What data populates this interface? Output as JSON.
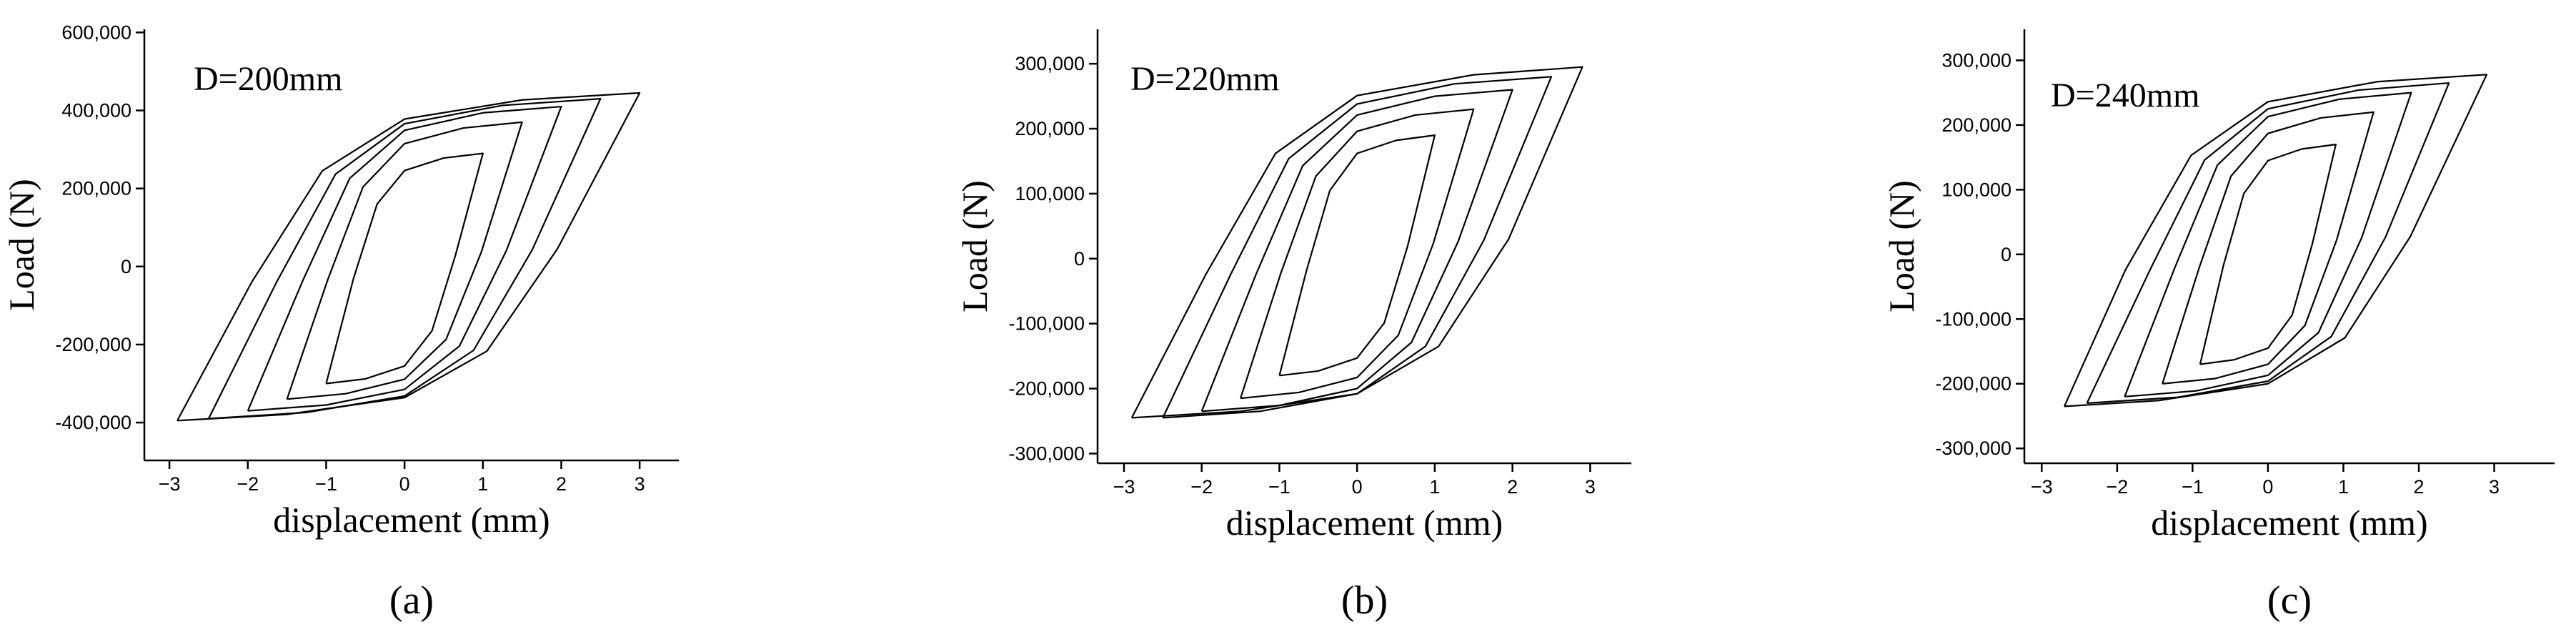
{
  "chart_data": [
    {
      "type": "line",
      "annotation": "D=200mm",
      "xlabel": "displacement (mm)",
      "ylabel": "Load (N)",
      "caption": "(a)",
      "xlim": [
        -3.32,
        3.5
      ],
      "ylim": [
        -497000,
        608000
      ],
      "xticks": [
        {
          "value": -3,
          "label": "−3"
        },
        {
          "value": -2,
          "label": "−2"
        },
        {
          "value": -1,
          "label": "−1"
        },
        0,
        1,
        2,
        3
      ],
      "yticks": [
        {
          "value": -400000,
          "label": "-400,000"
        },
        {
          "value": -200000,
          "label": "-200,000"
        },
        0,
        {
          "value": 200000,
          "label": "200,000"
        },
        {
          "value": 400000,
          "label": "400,000"
        },
        {
          "value": 600000,
          "label": "600,000"
        }
      ],
      "series": [
        {
          "color": "#000000",
          "x": [
            -1,
            -0.65,
            -0.35,
            0,
            0.5,
            1,
            0.65,
            0.35,
            0,
            -0.5,
            -1
          ],
          "values": [
            -300000,
            -30000,
            160000,
            246000,
            278000,
            290000,
            29000,
            -165000,
            -255000,
            -288000,
            -300000
          ]
        },
        {
          "color": "#000000",
          "x": [
            -1.5,
            -0.98,
            -0.53,
            0,
            0.75,
            1.5,
            0.98,
            0.53,
            0,
            -0.75,
            -1.5
          ],
          "values": [
            -340000,
            -34000,
            204000,
            315000,
            355000,
            370000,
            37000,
            -187000,
            -289000,
            -326000,
            -340000
          ]
        },
        {
          "color": "#000000",
          "x": [
            -2,
            -1.3,
            -0.7,
            0,
            1,
            2,
            1.3,
            0.7,
            0,
            -1,
            -2
          ],
          "values": [
            -370000,
            -37000,
            226000,
            349000,
            394000,
            410000,
            41000,
            -204000,
            -315000,
            -355000,
            -370000
          ]
        },
        {
          "color": "#000000",
          "x": [
            -2.5,
            -1.63,
            -0.88,
            0,
            1.25,
            2.5,
            1.63,
            0.88,
            0,
            -1.25,
            -2.5
          ],
          "values": [
            -390000,
            -39000,
            237000,
            366000,
            413000,
            430000,
            43000,
            -215000,
            -332000,
            -374000,
            -390000
          ]
        },
        {
          "color": "#000000",
          "x": [
            -2.9,
            -1.95,
            -1.05,
            0,
            1.5,
            3,
            1.95,
            1.05,
            0,
            -1.5,
            -2.9
          ],
          "values": [
            -395000,
            -40000,
            245000,
            378000,
            427000,
            445000,
            45000,
            -217000,
            -336000,
            -379000,
            -395000
          ]
        }
      ]
    },
    {
      "type": "line",
      "annotation": "D=220mm",
      "xlabel": "displacement (mm)",
      "ylabel": "Load (N)",
      "caption": "(b)",
      "xlim": [
        -3.34,
        3.53
      ],
      "ylim": [
        -315000,
        353000
      ],
      "xticks": [
        {
          "value": -3,
          "label": "−3"
        },
        {
          "value": -2,
          "label": "−2"
        },
        {
          "value": -1,
          "label": "−1"
        },
        0,
        1,
        2,
        3
      ],
      "yticks": [
        {
          "value": -300000,
          "label": "-300,000"
        },
        {
          "value": -200000,
          "label": "-200,000"
        },
        {
          "value": -100000,
          "label": "-100,000"
        },
        0,
        {
          "value": 100000,
          "label": "100,000"
        },
        {
          "value": 200000,
          "label": "200,000"
        },
        {
          "value": 300000,
          "label": "300,000"
        }
      ],
      "series": [
        {
          "color": "#000000",
          "x": [
            -1,
            -0.65,
            -0.35,
            0,
            0.5,
            1,
            0.65,
            0.35,
            0,
            -0.5,
            -1
          ],
          "values": [
            -180000,
            -18000,
            105000,
            162000,
            182000,
            190000,
            19000,
            -99000,
            -153000,
            -173000,
            -180000
          ]
        },
        {
          "color": "#000000",
          "x": [
            -1.5,
            -0.98,
            -0.53,
            0,
            0.75,
            1.5,
            0.98,
            0.53,
            0,
            -0.75,
            -1.5
          ],
          "values": [
            -215000,
            -22000,
            127000,
            196000,
            221000,
            230000,
            23000,
            -118000,
            -183000,
            -206000,
            -215000
          ]
        },
        {
          "color": "#000000",
          "x": [
            -2,
            -1.3,
            -0.7,
            0,
            1,
            2,
            1.3,
            0.7,
            0,
            -1,
            -2
          ],
          "values": [
            -235000,
            -24000,
            143000,
            221000,
            250000,
            260000,
            26000,
            -129000,
            -200000,
            -226000,
            -235000
          ]
        },
        {
          "color": "#000000",
          "x": [
            -2.5,
            -1.63,
            -0.88,
            0,
            1.25,
            2.5,
            1.63,
            0.88,
            0,
            -1.25,
            -2.5
          ],
          "values": [
            -245000,
            -25000,
            154000,
            238000,
            269000,
            280000,
            28000,
            -135000,
            -208000,
            -235000,
            -245000
          ]
        },
        {
          "color": "#000000",
          "x": [
            -2.9,
            -1.95,
            -1.05,
            0,
            1.5,
            2.9,
            1.95,
            1.05,
            0,
            -1.5,
            -2.9
          ],
          "values": [
            -245000,
            -25000,
            162000,
            251000,
            283000,
            295000,
            30000,
            -135000,
            -208000,
            -235000,
            -245000
          ]
        }
      ]
    },
    {
      "type": "line",
      "annotation": "D=240mm",
      "xlabel": "displacement (mm)",
      "ylabel": "Load (N)",
      "caption": "(c)",
      "xlim": [
        -3.23,
        3.8
      ],
      "ylim": [
        -323000,
        348000
      ],
      "xticks": [
        {
          "value": -3,
          "label": "−3"
        },
        {
          "value": -2,
          "label": "−2"
        },
        {
          "value": -1,
          "label": "−1"
        },
        0,
        1,
        2,
        3
      ],
      "yticks": [
        {
          "value": -300000,
          "label": "-300,000"
        },
        {
          "value": -200000,
          "label": "-200,000"
        },
        {
          "value": -100000,
          "label": "-100,000"
        },
        0,
        {
          "value": 100000,
          "label": "100,000"
        },
        {
          "value": 200000,
          "label": "200,000"
        },
        {
          "value": 300000,
          "label": "300,000"
        }
      ],
      "series": [
        {
          "color": "#000000",
          "x": [
            -0.9,
            -0.59,
            -0.32,
            0,
            0.45,
            0.9,
            0.59,
            0.32,
            0,
            -0.45,
            -0.9
          ],
          "values": [
            -170000,
            -17000,
            94000,
            145000,
            163000,
            170000,
            17000,
            -94000,
            -145000,
            -163000,
            -170000
          ]
        },
        {
          "color": "#000000",
          "x": [
            -1.4,
            -0.91,
            -0.49,
            0,
            0.7,
            1.4,
            0.91,
            0.49,
            0,
            -0.7,
            -1.4
          ],
          "values": [
            -200000,
            -20000,
            121000,
            187000,
            211000,
            220000,
            22000,
            -110000,
            -170000,
            -192000,
            -200000
          ]
        },
        {
          "color": "#000000",
          "x": [
            -1.9,
            -1.24,
            -0.67,
            0,
            0.95,
            1.9,
            1.24,
            0.67,
            0,
            -0.95,
            -1.9
          ],
          "values": [
            -220000,
            -22000,
            138000,
            213000,
            240000,
            250000,
            25000,
            -121000,
            -187000,
            -211000,
            -220000
          ]
        },
        {
          "color": "#000000",
          "x": [
            -2.4,
            -1.56,
            -0.84,
            0,
            1.2,
            2.4,
            1.56,
            0.84,
            0,
            -1.2,
            -2.4
          ],
          "values": [
            -230000,
            -23000,
            146000,
            225000,
            254000,
            265000,
            27000,
            -127000,
            -196000,
            -221000,
            -230000
          ]
        },
        {
          "color": "#000000",
          "x": [
            -2.7,
            -1.89,
            -1.02,
            0,
            1.45,
            2.9,
            1.89,
            1.02,
            0,
            -1.45,
            -2.7
          ],
          "values": [
            -235000,
            -24000,
            153000,
            236000,
            267000,
            278000,
            28000,
            -129000,
            -200000,
            -226000,
            -235000
          ]
        }
      ]
    }
  ]
}
